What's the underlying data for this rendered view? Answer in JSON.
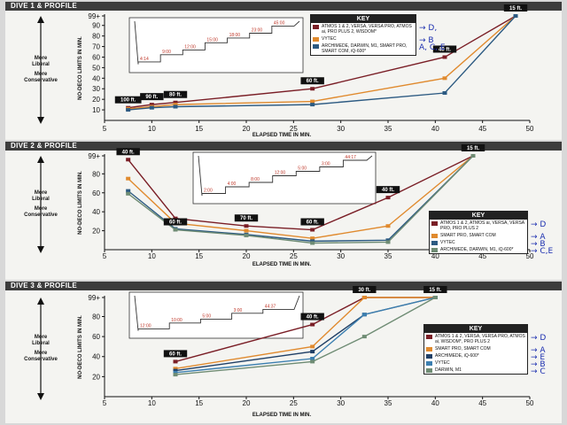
{
  "x_axis_title": "ELAPSED TIME IN MIN.",
  "y_axis_title": "NO-DECO LIMITS IN MIN.",
  "side_labels": {
    "liberal": [
      "More",
      "Liberal"
    ],
    "conservative": [
      "More",
      "Conservative"
    ]
  },
  "chart_data": [
    {
      "type": "line",
      "title": "DIVE 1 & PROFILE",
      "xlim": [
        5,
        50
      ],
      "ylim": [
        0,
        99
      ],
      "xticks": [
        "5",
        "10",
        "15",
        "20",
        "25",
        "30",
        "35",
        "40",
        "45",
        "50"
      ],
      "yticks": [
        "10",
        "20",
        "30",
        "40",
        "50",
        "60",
        "70",
        "80",
        "90",
        "99+"
      ],
      "series": [
        {
          "name": "ATMOS 1 & 2, VERSA, VERSA PRO, ATMOS ai, PRO PLUS 2, WISDOM*",
          "color": "#7a1e26",
          "note": "→ D,",
          "x": [
            7.5,
            10,
            12.5,
            27,
            41,
            48.5
          ],
          "y": [
            12,
            15,
            17,
            30,
            60,
            99
          ]
        },
        {
          "name": "VYTEC",
          "color": "#e08a2e",
          "note": "→ B",
          "x": [
            7.5,
            10,
            12.5,
            27,
            41,
            48.5
          ],
          "y": [
            11,
            13,
            15,
            18,
            40,
            99
          ]
        },
        {
          "name": "ARCHIMEDE, DARWIN, M1, SMART PRO, SMART COM, iQ-600*",
          "color": "#2c5a82",
          "note": "A, C, E",
          "x": [
            7.5,
            10,
            12.5,
            27,
            41,
            48.5
          ],
          "y": [
            10,
            12,
            13,
            15,
            26,
            99
          ]
        }
      ],
      "labels": [
        {
          "text": "100 ft.",
          "x": 7.5,
          "y": 12
        },
        {
          "text": "90 ft.",
          "x": 10,
          "y": 15
        },
        {
          "text": "80 ft.",
          "x": 12.5,
          "y": 17
        },
        {
          "text": "60 ft.",
          "x": 27,
          "y": 30
        },
        {
          "text": "40 ft.",
          "x": 41,
          "y": 60
        },
        {
          "text": "15 ft.",
          "x": 48.5,
          "y": 99
        }
      ],
      "inset_labels": [
        "4:14",
        "9:00",
        "12:00",
        "15:00",
        "18:00",
        "23:00",
        "45:00"
      ]
    },
    {
      "type": "line",
      "title": "DIVE 2 & PROFILE",
      "xlim": [
        5,
        50
      ],
      "ylim": [
        0,
        99
      ],
      "xticks": [
        "5",
        "10",
        "15",
        "20",
        "25",
        "30",
        "35",
        "40",
        "45",
        "50"
      ],
      "yticks": [
        "20",
        "40",
        "60",
        "80",
        "99+"
      ],
      "series": [
        {
          "name": "ATMOS 1 & 2, ATMOS ai, VERSA, VERSA PRO, PRO PLUS 2",
          "color": "#7a1e26",
          "note": "→ D",
          "x": [
            7.5,
            12.5,
            20,
            27,
            35,
            44
          ],
          "y": [
            95,
            33,
            25,
            21,
            55,
            99
          ]
        },
        {
          "name": "SMART PRO, SMART COM",
          "color": "#e08a2e",
          "note": "→ A",
          "x": [
            7.5,
            12.5,
            20,
            27,
            35,
            44
          ],
          "y": [
            75,
            28,
            20,
            12,
            25,
            99
          ]
        },
        {
          "name": "VYTEC",
          "color": "#2c5a82",
          "note": "→ B",
          "x": [
            7.5,
            12.5,
            20,
            27,
            35,
            44
          ],
          "y": [
            62,
            22,
            16,
            9,
            10,
            99
          ]
        },
        {
          "name": "ARCHIMEDE, DARWIN, M1, iQ-600*",
          "color": "#6f8c74",
          "note": "→ C,E",
          "x": [
            7.5,
            12.5,
            20,
            27,
            35,
            44
          ],
          "y": [
            59,
            21,
            15,
            7,
            8,
            99
          ]
        }
      ],
      "labels": [
        {
          "text": "40 ft.",
          "x": 7.5,
          "y": 95
        },
        {
          "text": "60 ft.",
          "x": 12.5,
          "y": 21
        },
        {
          "text": "70 ft.",
          "x": 20,
          "y": 25
        },
        {
          "text": "60 ft.",
          "x": 27,
          "y": 21
        },
        {
          "text": "40 ft.",
          "x": 35,
          "y": 55
        },
        {
          "text": "15 ft.",
          "x": 44,
          "y": 99
        }
      ],
      "inset_labels": [
        "2:00",
        "4:00",
        "8:00",
        "12:00",
        "5:00",
        "3:00",
        "44:17"
      ]
    },
    {
      "type": "line",
      "title": "DIVE 3 & PROFILE",
      "xlim": [
        5,
        50
      ],
      "ylim": [
        0,
        99
      ],
      "xticks": [
        "5",
        "10",
        "15",
        "20",
        "25",
        "30",
        "35",
        "40",
        "45",
        "50"
      ],
      "yticks": [
        "20",
        "40",
        "60",
        "80",
        "99+"
      ],
      "series": [
        {
          "name": "ATMOS 1 & 2, VERSA, VERSA PRO, ATMOS ai, WISDOM*, PRO PLUS 2",
          "color": "#7a1e26",
          "note": "→ D",
          "x": [
            12.5,
            27,
            32.5,
            40
          ],
          "y": [
            35,
            72,
            99,
            99
          ]
        },
        {
          "name": "SMART PRO, SMART COM",
          "color": "#e08a2e",
          "note": "→ A",
          "x": [
            12.5,
            27,
            32.5,
            40
          ],
          "y": [
            28,
            50,
            99,
            99
          ]
        },
        {
          "name": "ARCHIMEDE, iQ-600*",
          "color": "#1f3f66",
          "note": "→ E",
          "x": [
            12.5,
            27,
            32.5,
            40
          ],
          "y": [
            26,
            45,
            82,
            99
          ]
        },
        {
          "name": "VYTEC",
          "color": "#3c7fb0",
          "note": "→ B",
          "x": [
            12.5,
            27,
            32.5,
            40
          ],
          "y": [
            24,
            38,
            82,
            99
          ]
        },
        {
          "name": "DARWIN, M1",
          "color": "#6f8c74",
          "note": "→ C",
          "x": [
            12.5,
            27,
            32.5,
            40
          ],
          "y": [
            22,
            35,
            60,
            99
          ]
        }
      ],
      "labels": [
        {
          "text": "60 ft.",
          "x": 12.5,
          "y": 35
        },
        {
          "text": "40 ft.",
          "x": 27,
          "y": 72
        },
        {
          "text": "30 ft.",
          "x": 32.5,
          "y": 99
        },
        {
          "text": "15 ft.",
          "x": 40,
          "y": 99
        }
      ],
      "inset_labels": [
        "12:00",
        "10:00",
        "5:00",
        "3:00",
        "44:37"
      ]
    }
  ]
}
